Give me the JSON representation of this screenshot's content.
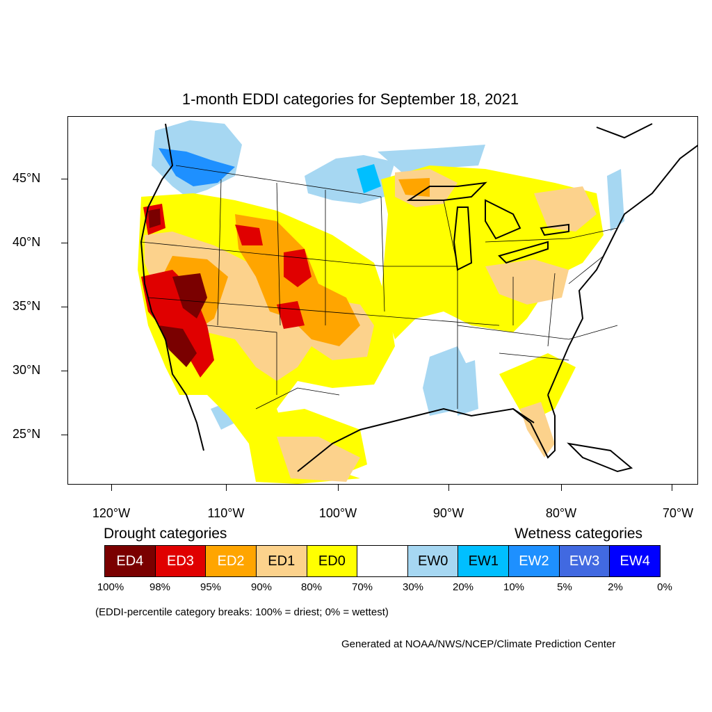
{
  "title": "1-month EDDI categories for September 18, 2021",
  "map": {
    "lat_labels": [
      "45°N",
      "40°N",
      "35°N",
      "30°N",
      "25°N"
    ],
    "lon_labels": [
      "120°W",
      "110°W",
      "100°W",
      "90°W",
      "80°W",
      "70°W"
    ],
    "colors": {
      "ED4": "#7a0000",
      "ED3": "#e00000",
      "ED2": "#ffa500",
      "ED1": "#fcd28c",
      "ED0": "#ffff00",
      "EW0": "#a6d7f2",
      "EW1": "#00bfff",
      "EW2": "#1e90ff",
      "EW3": "#4169e1",
      "EW4": "#0000ff",
      "coast": "#000000",
      "state": "#000000"
    }
  },
  "legend": {
    "drought_heading": "Drought categories",
    "wetness_heading": "Wetness categories",
    "categories": [
      {
        "label": "ED4",
        "color": "#7a0000",
        "text_color": "#ffffff"
      },
      {
        "label": "ED3",
        "color": "#e00000",
        "text_color": "#ffffff"
      },
      {
        "label": "ED2",
        "color": "#ffa500",
        "text_color": "#ffffff"
      },
      {
        "label": "ED1",
        "color": "#fcd28c",
        "text_color": "#000000"
      },
      {
        "label": "ED0",
        "color": "#ffff00",
        "text_color": "#000000"
      },
      {
        "label": "",
        "color": "#ffffff",
        "text_color": "#000000"
      },
      {
        "label": "EW0",
        "color": "#a6d7f2",
        "text_color": "#000000"
      },
      {
        "label": "EW1",
        "color": "#00bfff",
        "text_color": "#000000"
      },
      {
        "label": "EW2",
        "color": "#1e90ff",
        "text_color": "#ffffff"
      },
      {
        "label": "EW3",
        "color": "#4169e1",
        "text_color": "#ffffff"
      },
      {
        "label": "EW4",
        "color": "#0000ff",
        "text_color": "#ffffff"
      }
    ],
    "breaks": [
      "100%",
      "98%",
      "95%",
      "90%",
      "80%",
      "70%",
      "30%",
      "20%",
      "10%",
      "5%",
      "2%",
      "0%"
    ]
  },
  "note": "(EDDI-percentile category breaks: 100% = driest; 0% = wettest)",
  "credit": "Generated at NOAA/NWS/NCEP/Climate Prediction Center"
}
